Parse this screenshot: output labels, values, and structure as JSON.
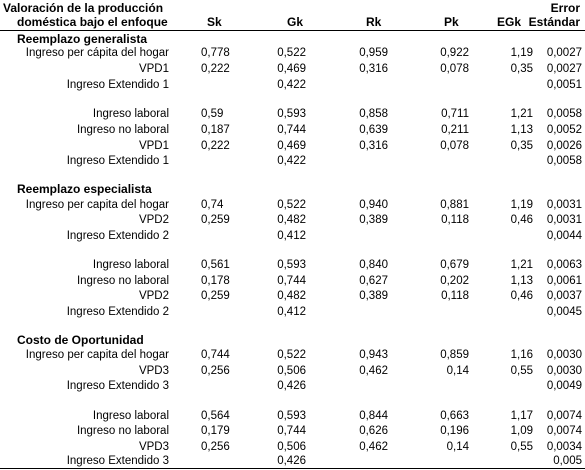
{
  "header": {
    "title_line1": "Valoración de la producción",
    "title_line2": "doméstica bajo el enfoque",
    "col_sk": "Sk",
    "col_gk": "Gk",
    "col_rk": "Rk",
    "col_pk": "Pk",
    "col_egk": "EGk",
    "col_err_line1": "Error",
    "col_err_line2": "Estándar"
  },
  "sections": [
    {
      "title": "Reemplazo generalista",
      "groups": [
        [
          {
            "label": "Ingreso per cápita del hogar",
            "sk": "0,778",
            "gk": "0,522",
            "rk": "0,959",
            "pk": "0,922",
            "egk": "1,19",
            "err": "0,0027"
          },
          {
            "label": "VPD1",
            "sk": "0,222",
            "gk": "0,469",
            "rk": "0,316",
            "pk": "0,078",
            "egk": "0,35",
            "err": "0,0027"
          },
          {
            "label": "Ingreso Extendido 1",
            "sk": "",
            "gk": "0,422",
            "rk": "",
            "pk": "",
            "egk": "",
            "err": "0,0051"
          }
        ],
        [
          {
            "label": "Ingreso laboral",
            "sk": "0,59",
            "gk": "0,593",
            "rk": "0,858",
            "pk": "0,711",
            "egk": "1,21",
            "err": "0,0058"
          },
          {
            "label": "Ingreso no laboral",
            "sk": "0,187",
            "gk": "0,744",
            "rk": "0,639",
            "pk": "0,211",
            "egk": "1,13",
            "err": "0,0052"
          },
          {
            "label": "VPD1",
            "sk": "0,222",
            "gk": "0,469",
            "rk": "0,316",
            "pk": "0,078",
            "egk": "0,35",
            "err": "0,0026"
          },
          {
            "label": "Ingreso Extendido 1",
            "sk": "",
            "gk": "0,422",
            "rk": "",
            "pk": "",
            "egk": "",
            "err": "0,0058"
          }
        ]
      ]
    },
    {
      "title": "Reemplazo especialista",
      "groups": [
        [
          {
            "label": "Ingreso per capita del hogar",
            "sk": "0,74",
            "gk": "0,522",
            "rk": "0,940",
            "pk": "0,881",
            "egk": "1,19",
            "err": "0,0031"
          },
          {
            "label": "VPD2",
            "sk": "0,259",
            "gk": "0,482",
            "rk": "0,389",
            "pk": "0,118",
            "egk": "0,46",
            "err": "0,0031"
          },
          {
            "label": "Ingreso Extendido 2",
            "sk": "",
            "gk": "0,412",
            "rk": "",
            "pk": "",
            "egk": "",
            "err": "0,0044"
          }
        ],
        [
          {
            "label": "Ingreso laboral",
            "sk": "0,561",
            "gk": "0,593",
            "rk": "0,840",
            "pk": "0,679",
            "egk": "1,21",
            "err": "0,0063"
          },
          {
            "label": "Ingreso no laboral",
            "sk": "0,178",
            "gk": "0,744",
            "rk": "0,627",
            "pk": "0,202",
            "egk": "1,13",
            "err": "0,0061"
          },
          {
            "label": "VPD2",
            "sk": "0,259",
            "gk": "0,482",
            "rk": "0,389",
            "pk": "0,118",
            "egk": "0,46",
            "err": "0,0037"
          },
          {
            "label": "Ingreso Extendido 2",
            "sk": "",
            "gk": "0,412",
            "rk": "",
            "pk": "",
            "egk": "",
            "err": "0,0045"
          }
        ]
      ]
    },
    {
      "title": "Costo de Oportunidad",
      "groups": [
        [
          {
            "label": "Ingreso per capita del hogar",
            "sk": "0,744",
            "gk": "0,522",
            "rk": "0,943",
            "pk": "0,859",
            "egk": "1,16",
            "err": "0,0030"
          },
          {
            "label": "VPD3",
            "sk": "0,256",
            "gk": "0,506",
            "rk": "0,462",
            "pk": "0,14",
            "egk": "0,55",
            "err": "0,0030"
          },
          {
            "label": "Ingreso Extendido 3",
            "sk": "",
            "gk": "0,426",
            "rk": "",
            "pk": "",
            "egk": "",
            "err": "0,0049"
          }
        ],
        [
          {
            "label": "Ingreso laboral",
            "sk": "0,564",
            "gk": "0,593",
            "rk": "0,844",
            "pk": "0,663",
            "egk": "1,17",
            "err": "0,0074"
          },
          {
            "label": "Ingreso no laboral",
            "sk": "0,179",
            "gk": "0,744",
            "rk": "0,626",
            "pk": "0,196",
            "egk": "1,09",
            "err": "0,0074"
          },
          {
            "label": "VPD3",
            "sk": "0,256",
            "gk": "0,506",
            "rk": "0,462",
            "pk": "0,14",
            "egk": "0,55",
            "err": "0,0034"
          },
          {
            "label": "Ingreso Extendido 3",
            "sk": "",
            "gk": "0,426",
            "rk": "",
            "pk": "",
            "egk": "",
            "err": "0,005"
          }
        ]
      ]
    }
  ]
}
